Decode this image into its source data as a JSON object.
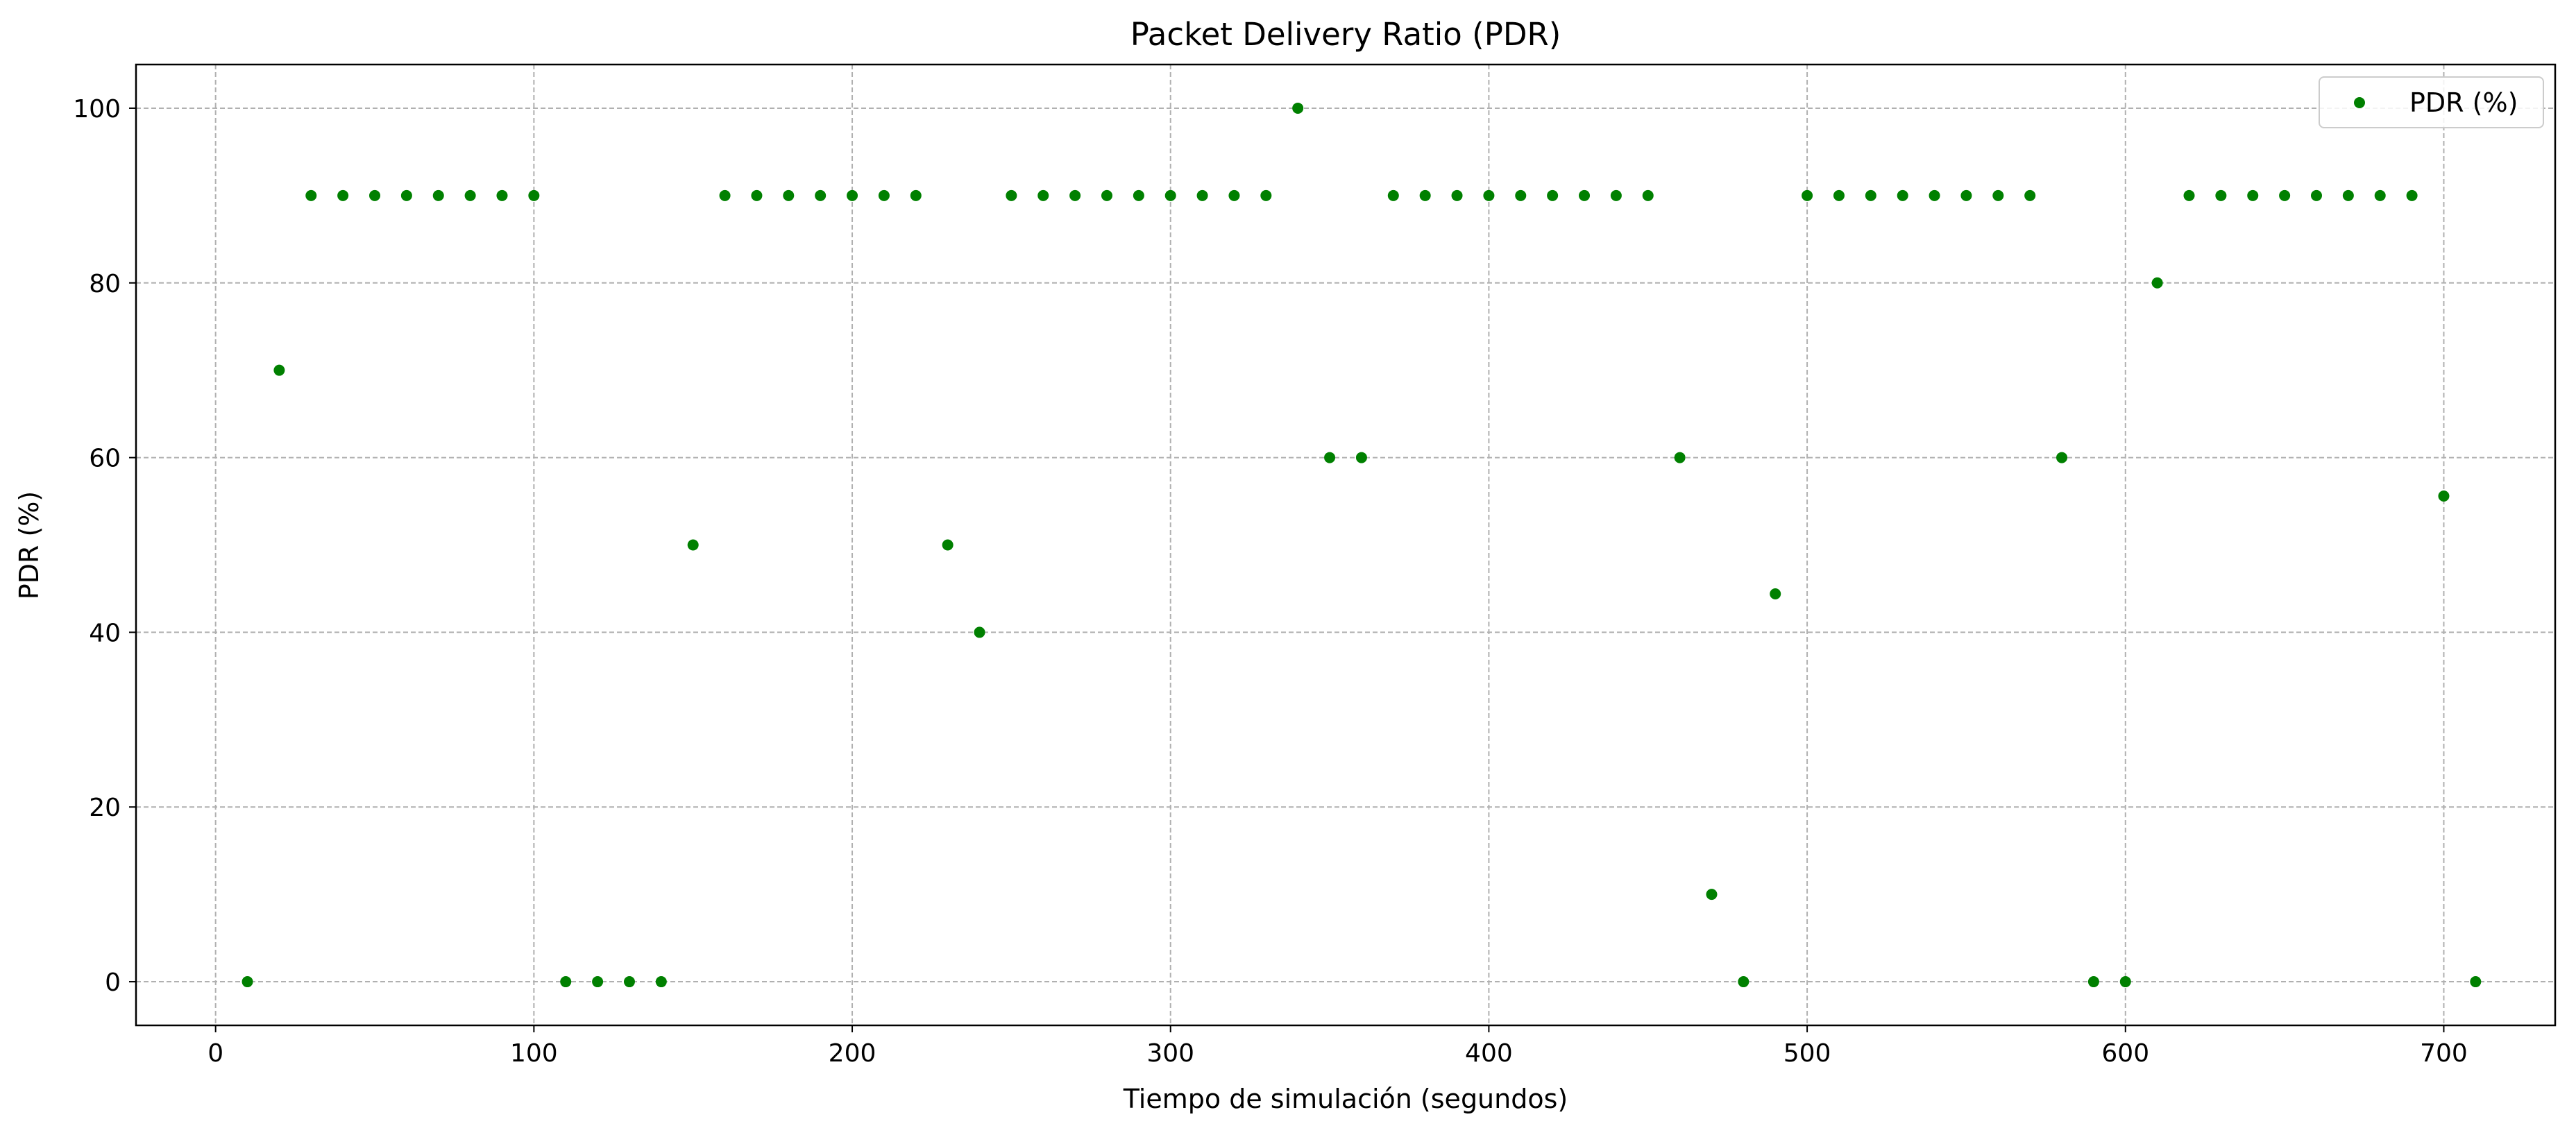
{
  "chart_data": {
    "type": "scatter",
    "title": "Packet Delivery Ratio (PDR)",
    "xlabel": "Tiempo de simulación (segundos)",
    "ylabel": "PDR (%)",
    "xlim": [
      -25,
      735
    ],
    "ylim": [
      -5,
      105
    ],
    "xticks": [
      0,
      100,
      200,
      300,
      400,
      500,
      600,
      700
    ],
    "yticks": [
      0,
      20,
      40,
      60,
      80,
      100
    ],
    "grid": true,
    "legend_position": "top-right",
    "color": "#008000",
    "series": [
      {
        "name": "PDR (%)",
        "x": [
          10,
          20,
          30,
          40,
          50,
          60,
          70,
          80,
          90,
          100,
          110,
          120,
          130,
          140,
          150,
          160,
          170,
          180,
          190,
          200,
          210,
          220,
          230,
          240,
          250,
          260,
          270,
          280,
          290,
          300,
          310,
          320,
          330,
          340,
          350,
          360,
          370,
          380,
          390,
          400,
          410,
          420,
          430,
          440,
          450,
          460,
          470,
          480,
          490,
          500,
          510,
          520,
          530,
          540,
          550,
          560,
          570,
          580,
          590,
          600,
          610,
          620,
          630,
          640,
          650,
          660,
          670,
          680,
          690,
          700,
          710
        ],
        "y": [
          0,
          70,
          90,
          90,
          90,
          90,
          90,
          90,
          90,
          90,
          0,
          0,
          0,
          0,
          50,
          90,
          90,
          90,
          90,
          90,
          90,
          90,
          50,
          40,
          90,
          90,
          90,
          90,
          90,
          90,
          90,
          90,
          90,
          100,
          60,
          60,
          90,
          90,
          90,
          90,
          90,
          90,
          90,
          90,
          90,
          60,
          10,
          0,
          44.4,
          90,
          90,
          90,
          90,
          90,
          90,
          90,
          90,
          60,
          0,
          0,
          80,
          90,
          90,
          90,
          90,
          90,
          90,
          90,
          90,
          55.6,
          0
        ]
      }
    ]
  }
}
